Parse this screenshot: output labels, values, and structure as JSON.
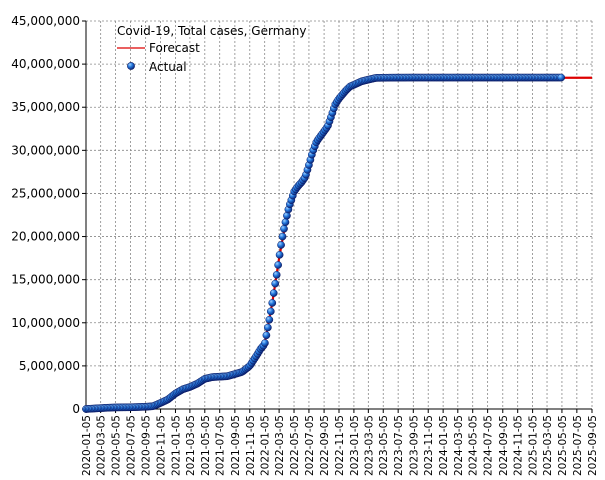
{
  "chart_data": {
    "type": "line",
    "title": "Covid-19, Total cases, Germany",
    "xlabel": "",
    "ylabel": "",
    "x_type": "date",
    "xlim": [
      "2020-01-05",
      "2025-09-05"
    ],
    "ylim": [
      0,
      45000000
    ],
    "y_ticks": [
      0,
      5000000,
      10000000,
      15000000,
      20000000,
      25000000,
      30000000,
      35000000,
      40000000,
      45000000
    ],
    "y_tick_labels": [
      "0",
      "5,000,000",
      "10,000,000",
      "15,000,000",
      "20,000,000",
      "25,000,000",
      "30,000,000",
      "35,000,000",
      "40,000,000",
      "45,000,000"
    ],
    "x_tick_labels": [
      "2020-01-05",
      "2020-03-05",
      "2020-05-05",
      "2020-07-05",
      "2020-09-05",
      "2020-11-05",
      "2021-01-05",
      "2021-03-05",
      "2021-05-05",
      "2021-07-05",
      "2021-09-05",
      "2021-11-05",
      "2022-01-05",
      "2022-03-05",
      "2022-05-05",
      "2022-07-05",
      "2022-09-05",
      "2022-11-05",
      "2023-01-05",
      "2023-03-05",
      "2023-05-05",
      "2023-07-05",
      "2023-09-05",
      "2023-11-05",
      "2024-01-05",
      "2024-03-05",
      "2024-05-05",
      "2024-07-05",
      "2024-09-05",
      "2024-11-05",
      "2025-01-05",
      "2025-03-05",
      "2025-05-05",
      "2025-07-05",
      "2025-09-05"
    ],
    "grid": true,
    "legend_position": "top-left",
    "legend": [
      {
        "label": "Forecast",
        "kind": "line"
      },
      {
        "label": "Actual",
        "kind": "marker"
      }
    ],
    "colors": {
      "forecast": "#dd0000",
      "actual_fill": "#2277dd",
      "actual_dark": "#0a1a66",
      "grid": "#888888",
      "axis": "#000000"
    },
    "series": [
      {
        "name": "Actual",
        "style": "markers",
        "points": [
          [
            "2020-01-05",
            0
          ],
          [
            "2020-03-05",
            100000
          ],
          [
            "2020-04-05",
            150000
          ],
          [
            "2020-05-05",
            180000
          ],
          [
            "2020-07-05",
            200000
          ],
          [
            "2020-09-05",
            260000
          ],
          [
            "2020-10-05",
            320000
          ],
          [
            "2020-11-05",
            700000
          ],
          [
            "2020-12-05",
            1100000
          ],
          [
            "2021-01-05",
            1800000
          ],
          [
            "2021-02-05",
            2300000
          ],
          [
            "2021-03-05",
            2550000
          ],
          [
            "2021-04-05",
            2950000
          ],
          [
            "2021-05-05",
            3500000
          ],
          [
            "2021-06-05",
            3700000
          ],
          [
            "2021-07-05",
            3750000
          ],
          [
            "2021-08-05",
            3800000
          ],
          [
            "2021-09-05",
            4050000
          ],
          [
            "2021-10-05",
            4300000
          ],
          [
            "2021-11-05",
            5000000
          ],
          [
            "2021-12-05",
            6300000
          ],
          [
            "2021-12-20",
            7000000
          ],
          [
            "2022-01-05",
            7500000
          ],
          [
            "2022-01-15",
            9000000
          ],
          [
            "2022-01-25",
            10500000
          ],
          [
            "2022-02-05",
            12300000
          ],
          [
            "2022-02-15",
            14200000
          ],
          [
            "2022-02-25",
            15900000
          ],
          [
            "2022-03-05",
            17500000
          ],
          [
            "2022-03-15",
            19400000
          ],
          [
            "2022-03-25",
            20900000
          ],
          [
            "2022-04-05",
            22300000
          ],
          [
            "2022-04-15",
            23500000
          ],
          [
            "2022-04-25",
            24300000
          ],
          [
            "2022-05-05",
            25200000
          ],
          [
            "2022-05-20",
            25800000
          ],
          [
            "2022-06-05",
            26300000
          ],
          [
            "2022-06-20",
            26900000
          ],
          [
            "2022-07-05",
            28300000
          ],
          [
            "2022-07-20",
            29800000
          ],
          [
            "2022-08-05",
            31000000
          ],
          [
            "2022-08-20",
            31600000
          ],
          [
            "2022-09-05",
            32200000
          ],
          [
            "2022-09-20",
            32800000
          ],
          [
            "2022-10-05",
            34000000
          ],
          [
            "2022-10-20",
            35300000
          ],
          [
            "2022-11-05",
            36000000
          ],
          [
            "2022-11-20",
            36500000
          ],
          [
            "2022-12-05",
            37000000
          ],
          [
            "2022-12-20",
            37400000
          ],
          [
            "2023-01-05",
            37600000
          ],
          [
            "2023-02-05",
            38000000
          ],
          [
            "2023-03-05",
            38200000
          ],
          [
            "2023-04-05",
            38400000
          ],
          [
            "2023-06-05",
            38430000
          ],
          [
            "2023-09-05",
            38440000
          ],
          [
            "2024-01-05",
            38440000
          ],
          [
            "2024-05-05",
            38440000
          ],
          [
            "2024-09-05",
            38440000
          ],
          [
            "2025-01-05",
            38440000
          ],
          [
            "2025-05-05",
            38440000
          ]
        ]
      },
      {
        "name": "Forecast",
        "style": "line",
        "points": [
          [
            "2020-01-05",
            0
          ],
          [
            "2020-03-05",
            150000
          ],
          [
            "2020-05-05",
            190000
          ],
          [
            "2020-07-05",
            210000
          ],
          [
            "2020-09-05",
            270000
          ],
          [
            "2020-10-05",
            340000
          ],
          [
            "2020-11-05",
            650000
          ],
          [
            "2020-12-05",
            1050000
          ],
          [
            "2021-01-05",
            1750000
          ],
          [
            "2021-02-05",
            2250000
          ],
          [
            "2021-03-05",
            2550000
          ],
          [
            "2021-04-05",
            2950000
          ],
          [
            "2021-05-05",
            3450000
          ],
          [
            "2021-06-05",
            3680000
          ],
          [
            "2021-07-05",
            3740000
          ],
          [
            "2021-08-05",
            3800000
          ],
          [
            "2021-09-05",
            4050000
          ],
          [
            "2021-10-05",
            4300000
          ],
          [
            "2021-11-05",
            5000000
          ],
          [
            "2021-12-05",
            6300000
          ],
          [
            "2022-01-05",
            7600000
          ],
          [
            "2022-02-05",
            12300000
          ],
          [
            "2022-03-05",
            17500000
          ],
          [
            "2022-04-05",
            22300000
          ],
          [
            "2022-05-05",
            25200000
          ],
          [
            "2022-06-05",
            26300000
          ],
          [
            "2022-07-05",
            28300000
          ],
          [
            "2022-08-05",
            31000000
          ],
          [
            "2022-09-05",
            32200000
          ],
          [
            "2022-10-05",
            34000000
          ],
          [
            "2022-11-05",
            36000000
          ],
          [
            "2022-12-05",
            37000000
          ],
          [
            "2023-01-05",
            37600000
          ],
          [
            "2023-03-05",
            38200000
          ],
          [
            "2023-05-05",
            38400000
          ],
          [
            "2025-09-05",
            38420000
          ]
        ]
      }
    ]
  }
}
